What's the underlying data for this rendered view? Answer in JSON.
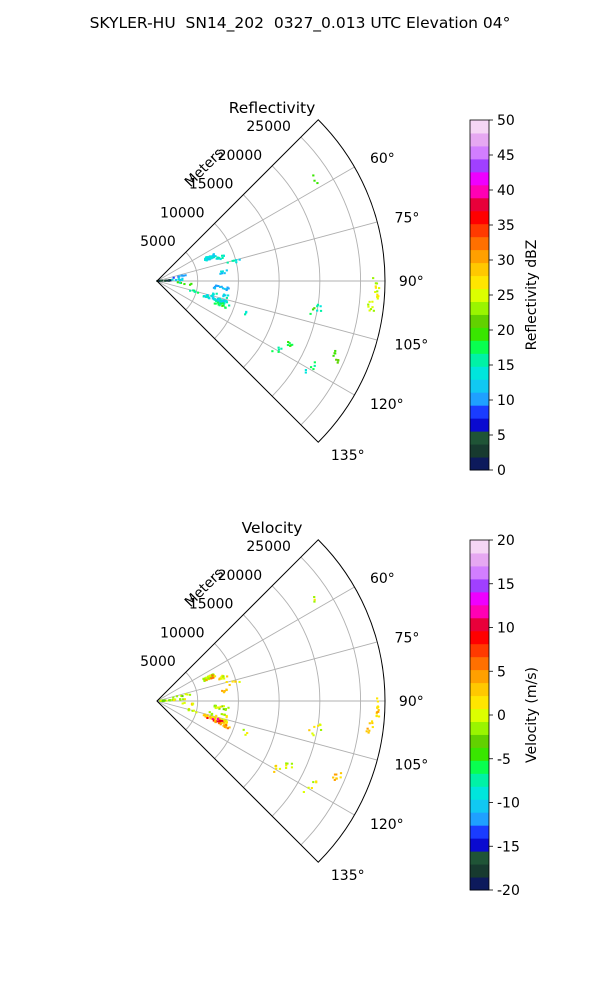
{
  "figure": {
    "suptitle": "SKYLER-HU  SN14_202  0327_0.013 UTC Elevation 04°"
  },
  "chart_data": [
    {
      "type": "polar-sector",
      "title": "Reflectivity",
      "radial_label": "Meters",
      "radial_range": [
        0,
        28000
      ],
      "radial_ticks": [
        5000,
        10000,
        15000,
        20000,
        25000
      ],
      "azimuth_range_deg": [
        45,
        135
      ],
      "azimuth_ticks_deg": [
        60,
        75,
        90,
        105,
        120,
        135
      ],
      "azimuth_tick_labels": [
        "60°",
        "75°",
        "90°",
        "105°",
        "120°",
        "135°"
      ],
      "grid": true,
      "colorbar": {
        "label": "Reflectivity dBZ",
        "range": [
          0,
          50
        ],
        "ticks": [
          0,
          5,
          10,
          15,
          20,
          25,
          30,
          35,
          40,
          45,
          50
        ],
        "colors": [
          "#0d1a5c",
          "#173a2f",
          "#1f5436",
          "#0a0ad0",
          "#1a3cff",
          "#1fa0ff",
          "#11c8f2",
          "#00e6dc",
          "#00f2a6",
          "#09ff50",
          "#39e600",
          "#62d100",
          "#9af500",
          "#dcff00",
          "#ffe600",
          "#ffc800",
          "#ffa000",
          "#ff7000",
          "#ff3a00",
          "#ff0000",
          "#e8003a",
          "#ff00b4",
          "#ee00ff",
          "#a040ff",
          "#d27eff",
          "#e6a8f2",
          "#f5d6f5"
        ]
      },
      "clusters": [
        {
          "az": 57,
          "r": [
            22800,
            23200
          ],
          "n": 3,
          "value": 19
        },
        {
          "az": 66,
          "r": [
            6300,
            7800
          ],
          "n": 42,
          "value": 13
        },
        {
          "az": 70,
          "r": [
            7800,
            9200
          ],
          "n": 10,
          "value": 14
        },
        {
          "az": 76,
          "r": [
            8800,
            10500
          ],
          "n": 6,
          "value": 14
        },
        {
          "az": 78,
          "r": [
            2000,
            4500
          ],
          "n": 8,
          "value": 10
        },
        {
          "az": 82,
          "r": [
            7800,
            8700
          ],
          "n": 6,
          "value": 12
        },
        {
          "az": 87,
          "r": [
            0,
            1800
          ],
          "n": 18,
          "value": 3
        },
        {
          "az": 86,
          "r": [
            1500,
            3500
          ],
          "n": 8,
          "value": 13
        },
        {
          "az": 90,
          "r": [
            26500,
            27200
          ],
          "n": 3,
          "value": 24
        },
        {
          "az": 93,
          "r": [
            26800,
            27400
          ],
          "n": 10,
          "value": 25
        },
        {
          "az": 95,
          "r": [
            2500,
            4500
          ],
          "n": 6,
          "value": 18
        },
        {
          "az": 96,
          "r": [
            7000,
            9000
          ],
          "n": 14,
          "value": 12
        },
        {
          "az": 97,
          "r": [
            26000,
            27000
          ],
          "n": 8,
          "value": 24
        },
        {
          "az": 99,
          "r": [
            19500,
            20500
          ],
          "n": 5,
          "value": 14
        },
        {
          "az": 101,
          "r": [
            19000,
            20000
          ],
          "n": 3,
          "value": 20
        },
        {
          "az": 103,
          "r": [
            6500,
            9000
          ],
          "n": 10,
          "value": 14
        },
        {
          "az": 105,
          "r": [
            4000,
            5500
          ],
          "n": 6,
          "value": 18
        },
        {
          "az": 107,
          "r": [
            6000,
            9000
          ],
          "n": 45,
          "value": 13
        },
        {
          "az": 110,
          "r": [
            7500,
            9500
          ],
          "n": 14,
          "value": 17
        },
        {
          "az": 110,
          "r": [
            11200,
            11800
          ],
          "n": 3,
          "value": 14
        },
        {
          "az": 113,
          "r": [
            23500,
            24500
          ],
          "n": 8,
          "value": 19
        },
        {
          "az": 116,
          "r": [
            17500,
            18500
          ],
          "n": 6,
          "value": 19
        },
        {
          "az": 118,
          "r": [
            21500,
            22500
          ],
          "n": 4,
          "value": 17
        },
        {
          "az": 120,
          "r": [
            16500,
            17500
          ],
          "n": 5,
          "value": 18
        },
        {
          "az": 121,
          "r": [
            21000,
            21500
          ],
          "n": 2,
          "value": 16
        }
      ]
    },
    {
      "type": "polar-sector",
      "title": "Velocity",
      "radial_label": "Meters",
      "radial_range": [
        0,
        28000
      ],
      "radial_ticks": [
        5000,
        10000,
        15000,
        20000,
        25000
      ],
      "azimuth_range_deg": [
        45,
        135
      ],
      "azimuth_ticks_deg": [
        60,
        75,
        90,
        105,
        120,
        135
      ],
      "azimuth_tick_labels": [
        "60°",
        "75°",
        "90°",
        "105°",
        "120°",
        "135°"
      ],
      "grid": true,
      "colorbar": {
        "label": "Velocity (m/s)",
        "range": [
          -20,
          20
        ],
        "ticks": [
          -20,
          -15,
          -10,
          -5,
          0,
          5,
          10,
          15,
          20
        ],
        "colors": [
          "#0d1a5c",
          "#173a2f",
          "#1f5436",
          "#0a0ad0",
          "#1a3cff",
          "#1fa0ff",
          "#11c8f2",
          "#00e6dc",
          "#00f2a6",
          "#09ff50",
          "#39e600",
          "#62d100",
          "#9af500",
          "#dcff00",
          "#ffe600",
          "#ffc800",
          "#ffa000",
          "#ff7000",
          "#ff3a00",
          "#ff0000",
          "#e8003a",
          "#ff00b4",
          "#ee00ff",
          "#a040ff",
          "#d27eff",
          "#e6a8f2",
          "#f5d6f5"
        ]
      },
      "clusters": [
        {
          "az": 57,
          "r": [
            22800,
            23200
          ],
          "n": 3,
          "value": 0
        },
        {
          "az": 66,
          "r": [
            6300,
            7800
          ],
          "n": 42,
          "value": 0
        },
        {
          "az": 66,
          "r": [
            6500,
            7500
          ],
          "n": 5,
          "value": 5
        },
        {
          "az": 70,
          "r": [
            7800,
            9200
          ],
          "n": 10,
          "value": 1
        },
        {
          "az": 76,
          "r": [
            8800,
            10500
          ],
          "n": 6,
          "value": 2
        },
        {
          "az": 78,
          "r": [
            2000,
            4500
          ],
          "n": 8,
          "value": -1
        },
        {
          "az": 82,
          "r": [
            7800,
            8700
          ],
          "n": 6,
          "value": 3
        },
        {
          "az": 87,
          "r": [
            0,
            1800
          ],
          "n": 18,
          "value": -2
        },
        {
          "az": 86,
          "r": [
            1500,
            3500
          ],
          "n": 8,
          "value": 0
        },
        {
          "az": 90,
          "r": [
            26500,
            27200
          ],
          "n": 3,
          "value": 2
        },
        {
          "az": 93,
          "r": [
            26800,
            27400
          ],
          "n": 10,
          "value": 2
        },
        {
          "az": 95,
          "r": [
            2500,
            4500
          ],
          "n": 6,
          "value": 1
        },
        {
          "az": 96,
          "r": [
            7000,
            9000
          ],
          "n": 14,
          "value": -1
        },
        {
          "az": 97,
          "r": [
            26000,
            27000
          ],
          "n": 8,
          "value": 3
        },
        {
          "az": 99,
          "r": [
            19500,
            20500
          ],
          "n": 5,
          "value": 0
        },
        {
          "az": 101,
          "r": [
            19000,
            20000
          ],
          "n": 3,
          "value": 1
        },
        {
          "az": 103,
          "r": [
            6500,
            9000
          ],
          "n": 10,
          "value": 0
        },
        {
          "az": 105,
          "r": [
            4000,
            5500
          ],
          "n": 6,
          "value": 0
        },
        {
          "az": 107,
          "r": [
            6000,
            9000
          ],
          "n": 38,
          "value": 2
        },
        {
          "az": 108,
          "r": [
            6500,
            8500
          ],
          "n": 12,
          "value": 10
        },
        {
          "az": 110,
          "r": [
            7500,
            9500
          ],
          "n": 14,
          "value": 4
        },
        {
          "az": 110,
          "r": [
            11200,
            11800
          ],
          "n": 3,
          "value": 0
        },
        {
          "az": 113,
          "r": [
            23500,
            24500
          ],
          "n": 8,
          "value": 3
        },
        {
          "az": 116,
          "r": [
            17500,
            18500
          ],
          "n": 6,
          "value": 0
        },
        {
          "az": 118,
          "r": [
            21500,
            22500
          ],
          "n": 4,
          "value": 0
        },
        {
          "az": 120,
          "r": [
            16500,
            17500
          ],
          "n": 5,
          "value": 1
        },
        {
          "az": 121,
          "r": [
            21000,
            21500
          ],
          "n": 2,
          "value": 0
        }
      ]
    }
  ]
}
